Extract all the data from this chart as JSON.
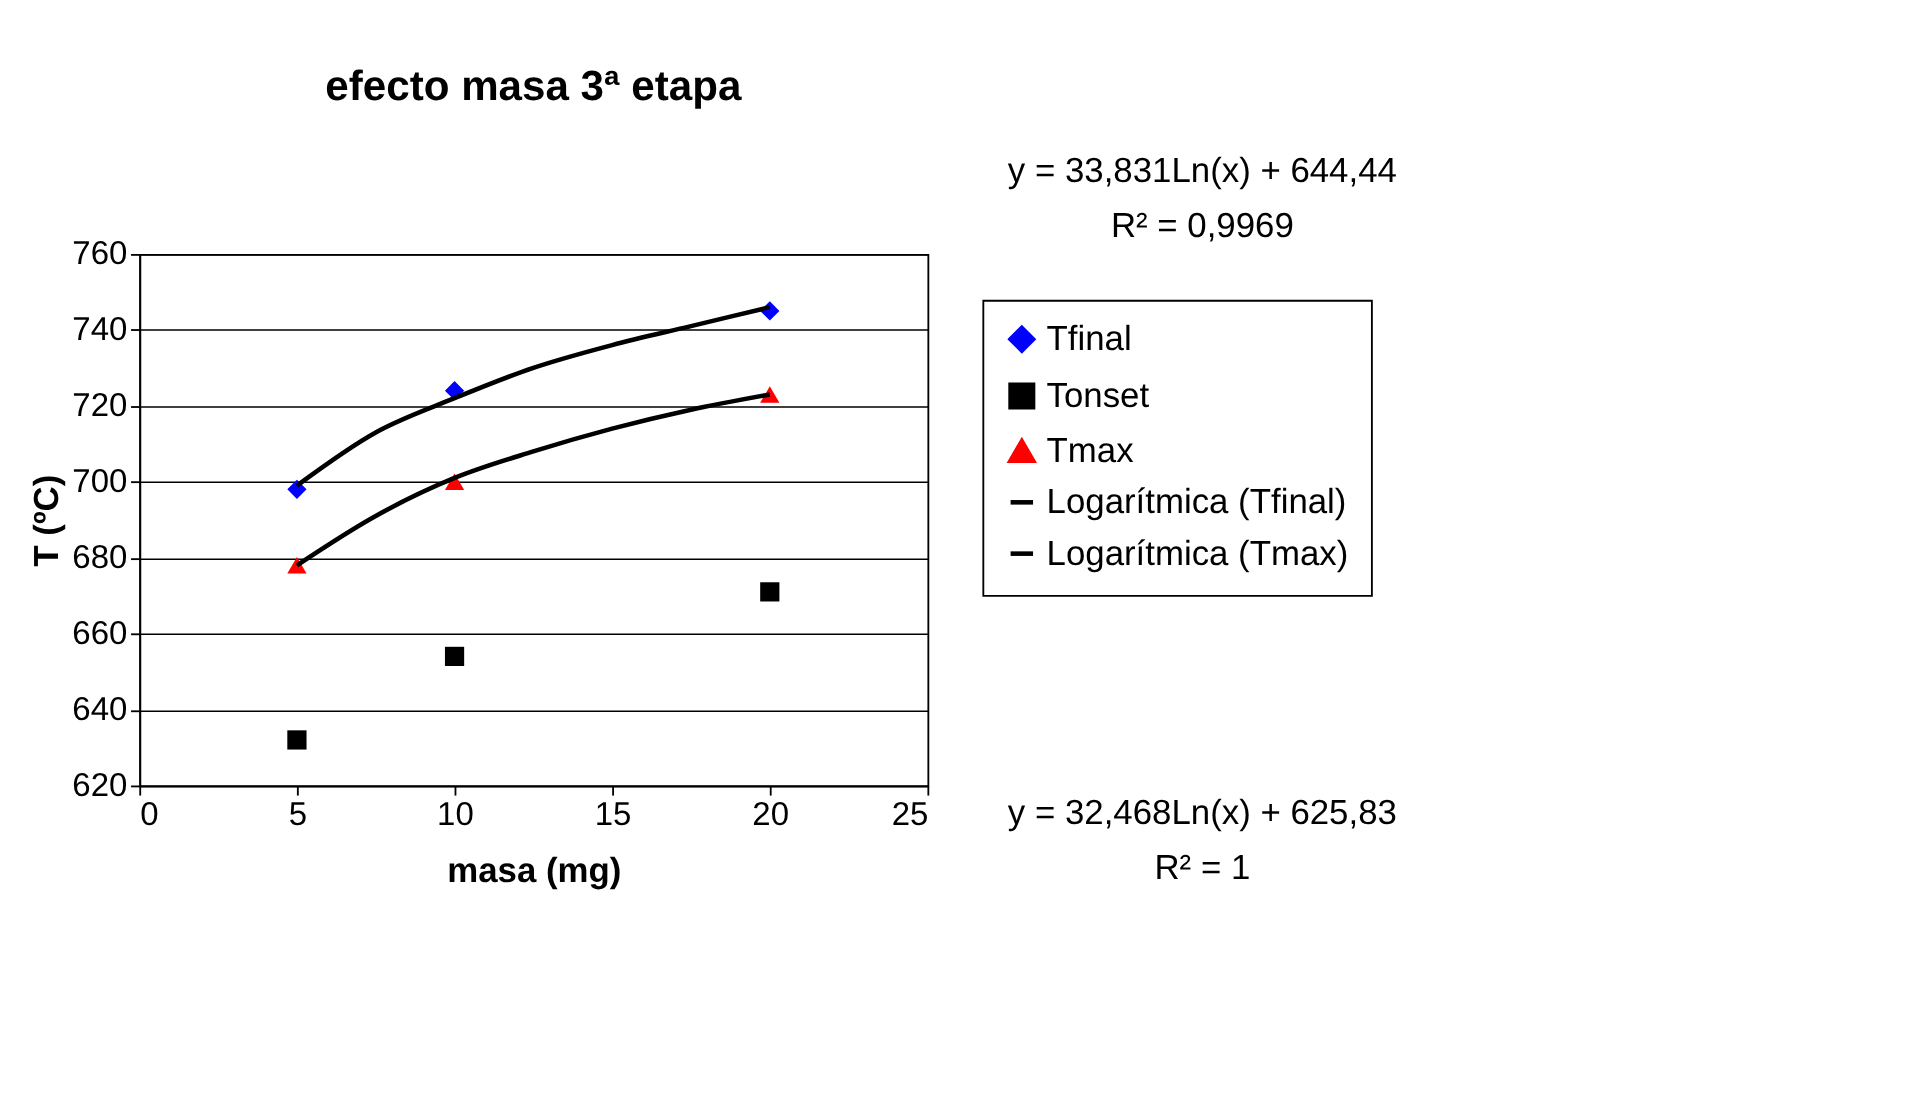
{
  "chart_data": {
    "type": "scatter",
    "title": "efecto masa 3ª etapa",
    "xlabel": "masa (mg)",
    "ylabel": "T (ºC)",
    "x": [
      5,
      10,
      20
    ],
    "series": [
      {
        "name": "Tfinal",
        "color": "#0000ff",
        "marker": "diamond",
        "values": [
          698,
          724,
          745
        ]
      },
      {
        "name": "Tonset",
        "color": "#000000",
        "marker": "square",
        "values": [
          632,
          654,
          671
        ]
      },
      {
        "name": "Tmax",
        "color": "#ff0000",
        "marker": "triangle",
        "values": [
          678,
          700,
          723
        ]
      },
      {
        "name": "Logarítmica (Tfinal)",
        "type": "line",
        "color": "#000000",
        "marker": "none",
        "x": [
          5,
          7.5,
          10,
          12.5,
          15,
          17.5,
          20
        ],
        "values": [
          699,
          713,
          722,
          730,
          736,
          741,
          746
        ]
      },
      {
        "name": "Logarítmica (Tmax)",
        "type": "line",
        "color": "#000000",
        "marker": "none",
        "x": [
          5,
          7.5,
          10,
          12.5,
          15,
          17.5,
          20
        ],
        "values": [
          678,
          691,
          701,
          708,
          714,
          719,
          723
        ]
      }
    ],
    "xlim": [
      0,
      25
    ],
    "xticks": [
      0,
      5,
      10,
      15,
      20,
      25
    ],
    "ylim": [
      620,
      760
    ],
    "yticks": [
      620,
      640,
      660,
      680,
      700,
      720,
      740,
      760
    ],
    "grid": "y",
    "legend": "right",
    "line_style": "solid",
    "annotations": [
      "y = 33,831Ln(x) + 644,44",
      "R² = 0,9969",
      "y = 32,468Ln(x) + 625,83",
      "R² = 1"
    ]
  }
}
